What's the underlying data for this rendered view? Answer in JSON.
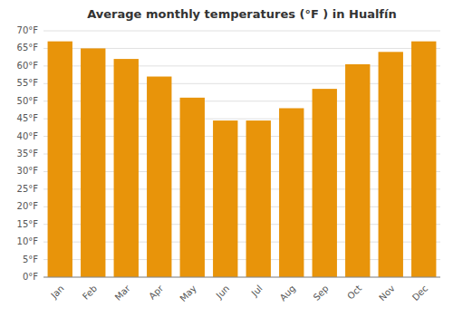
{
  "chart_data": {
    "type": "bar",
    "title": "Average monthly temperatures (°F ) in Hualfín",
    "categories": [
      "Jan",
      "Feb",
      "Mar",
      "Apr",
      "May",
      "Jun",
      "Jul",
      "Aug",
      "Sep",
      "Oct",
      "Nov",
      "Dec"
    ],
    "values": [
      67,
      65,
      62,
      57,
      51,
      44.5,
      44.5,
      48,
      53.5,
      60.5,
      64,
      67
    ],
    "color": "#E8940A",
    "ylim": [
      0,
      70
    ],
    "yticks": [
      {
        "value": 0,
        "label": "0°F"
      },
      {
        "value": 5,
        "label": "5°F"
      },
      {
        "value": 10,
        "label": "10°F"
      },
      {
        "value": 15,
        "label": "15°F"
      },
      {
        "value": 20,
        "label": "20°F"
      },
      {
        "value": 25,
        "label": "25°F"
      },
      {
        "value": 30,
        "label": "30°F"
      },
      {
        "value": 35,
        "label": "35°F"
      },
      {
        "value": 40,
        "label": "40°F"
      },
      {
        "value": 45,
        "label": "45°F"
      },
      {
        "value": 50,
        "label": "50°F"
      },
      {
        "value": 55,
        "label": "55°F"
      },
      {
        "value": 60,
        "label": "60°F"
      },
      {
        "value": 65,
        "label": "65°F"
      },
      {
        "value": 70,
        "label": "70°F"
      }
    ],
    "grid": true
  }
}
